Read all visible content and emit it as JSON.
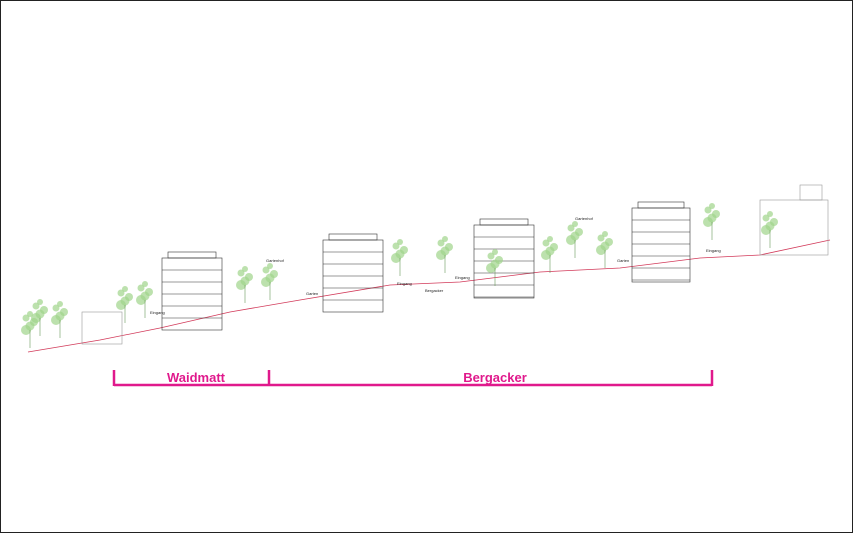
{
  "sections": [
    {
      "label": "Waidmatt"
    },
    {
      "label": "Bergacker"
    }
  ],
  "annotations": [
    "Eingang",
    "Gartenhof",
    "Garten",
    "Eingang",
    "Bergacker",
    "Eingang",
    "Gartenhof",
    "Garten",
    "Eingang"
  ]
}
